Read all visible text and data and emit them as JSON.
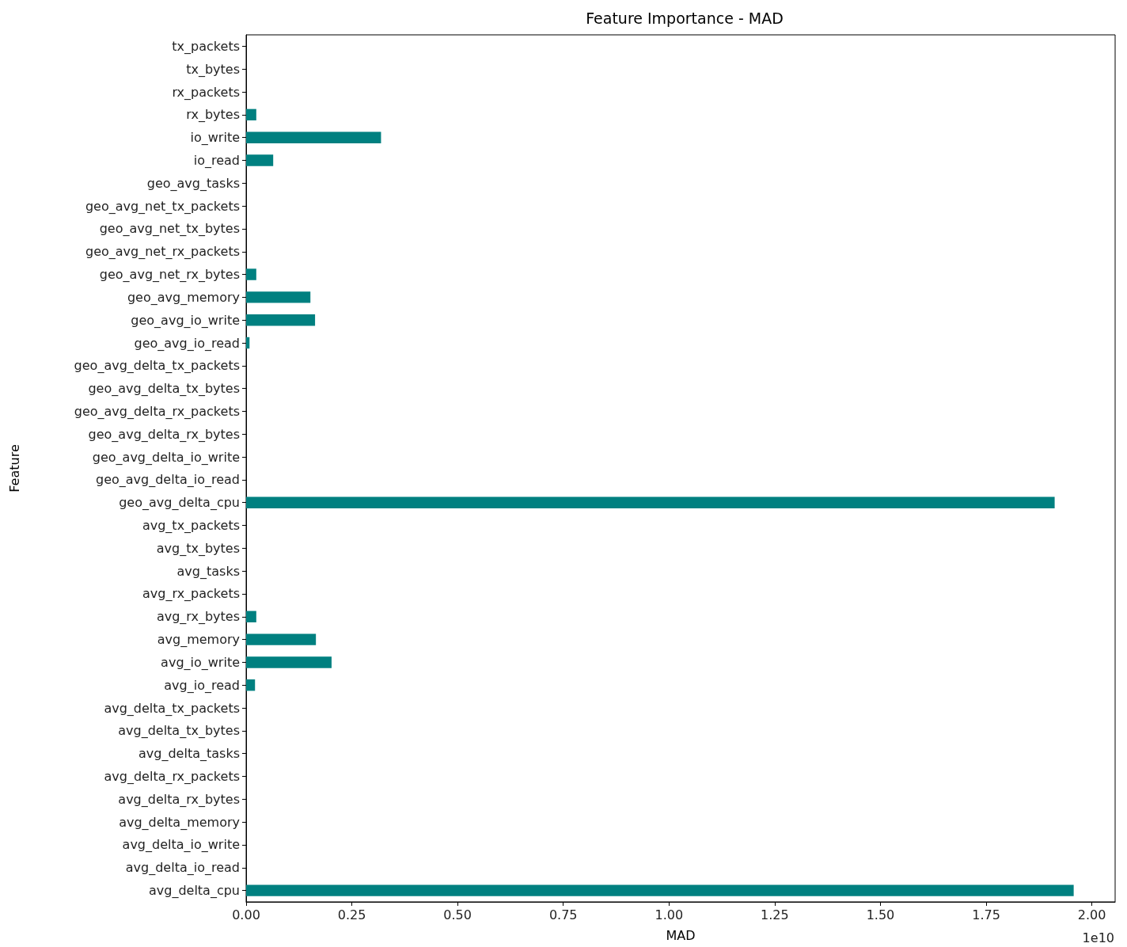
{
  "chart_data": {
    "type": "bar",
    "orientation": "horizontal",
    "title": "Feature Importance - MAD",
    "xlabel": "MAD",
    "ylabel": "Feature",
    "annotations": [
      "1e10"
    ],
    "categories": [
      "tx_packets",
      "tx_bytes",
      "rx_packets",
      "rx_bytes",
      "io_write",
      "io_read",
      "geo_avg_tasks",
      "geo_avg_net_tx_packets",
      "geo_avg_net_tx_bytes",
      "geo_avg_net_rx_packets",
      "geo_avg_net_rx_bytes",
      "geo_avg_memory",
      "geo_avg_io_write",
      "geo_avg_io_read",
      "geo_avg_delta_tx_packets",
      "geo_avg_delta_tx_bytes",
      "geo_avg_delta_rx_packets",
      "geo_avg_delta_rx_bytes",
      "geo_avg_delta_io_write",
      "geo_avg_delta_io_read",
      "geo_avg_delta_cpu",
      "avg_tx_packets",
      "avg_tx_bytes",
      "avg_tasks",
      "avg_rx_packets",
      "avg_rx_bytes",
      "avg_memory",
      "avg_io_write",
      "avg_io_read",
      "avg_delta_tx_packets",
      "avg_delta_tx_bytes",
      "avg_delta_tasks",
      "avg_delta_rx_packets",
      "avg_delta_rx_bytes",
      "avg_delta_memory",
      "avg_delta_io_write",
      "avg_delta_io_read",
      "avg_delta_cpu"
    ],
    "values": [
      0,
      0,
      0,
      0.024,
      0.319,
      0.064,
      0,
      0,
      0,
      0,
      0.024,
      0.152,
      0.163,
      0.008,
      0,
      0,
      0,
      0,
      0,
      0,
      1.912,
      0,
      0,
      0,
      0,
      0.024,
      0.165,
      0.202,
      0.021,
      0,
      0,
      0,
      0,
      0,
      0,
      0,
      0,
      1.957
    ],
    "color": "#008080",
    "xlim": [
      0,
      2.055
    ],
    "xticks": [
      {
        "value": 0,
        "label": "0.00"
      },
      {
        "value": 0.25,
        "label": "0.25"
      },
      {
        "value": 0.5,
        "label": "0.50"
      },
      {
        "value": 0.75,
        "label": "0.75"
      },
      {
        "value": 1,
        "label": "1.00"
      },
      {
        "value": 1.25,
        "label": "1.25"
      },
      {
        "value": 1.5,
        "label": "1.50"
      },
      {
        "value": 1.75,
        "label": "1.75"
      },
      {
        "value": 2,
        "label": "2.00"
      }
    ],
    "grid": false
  }
}
